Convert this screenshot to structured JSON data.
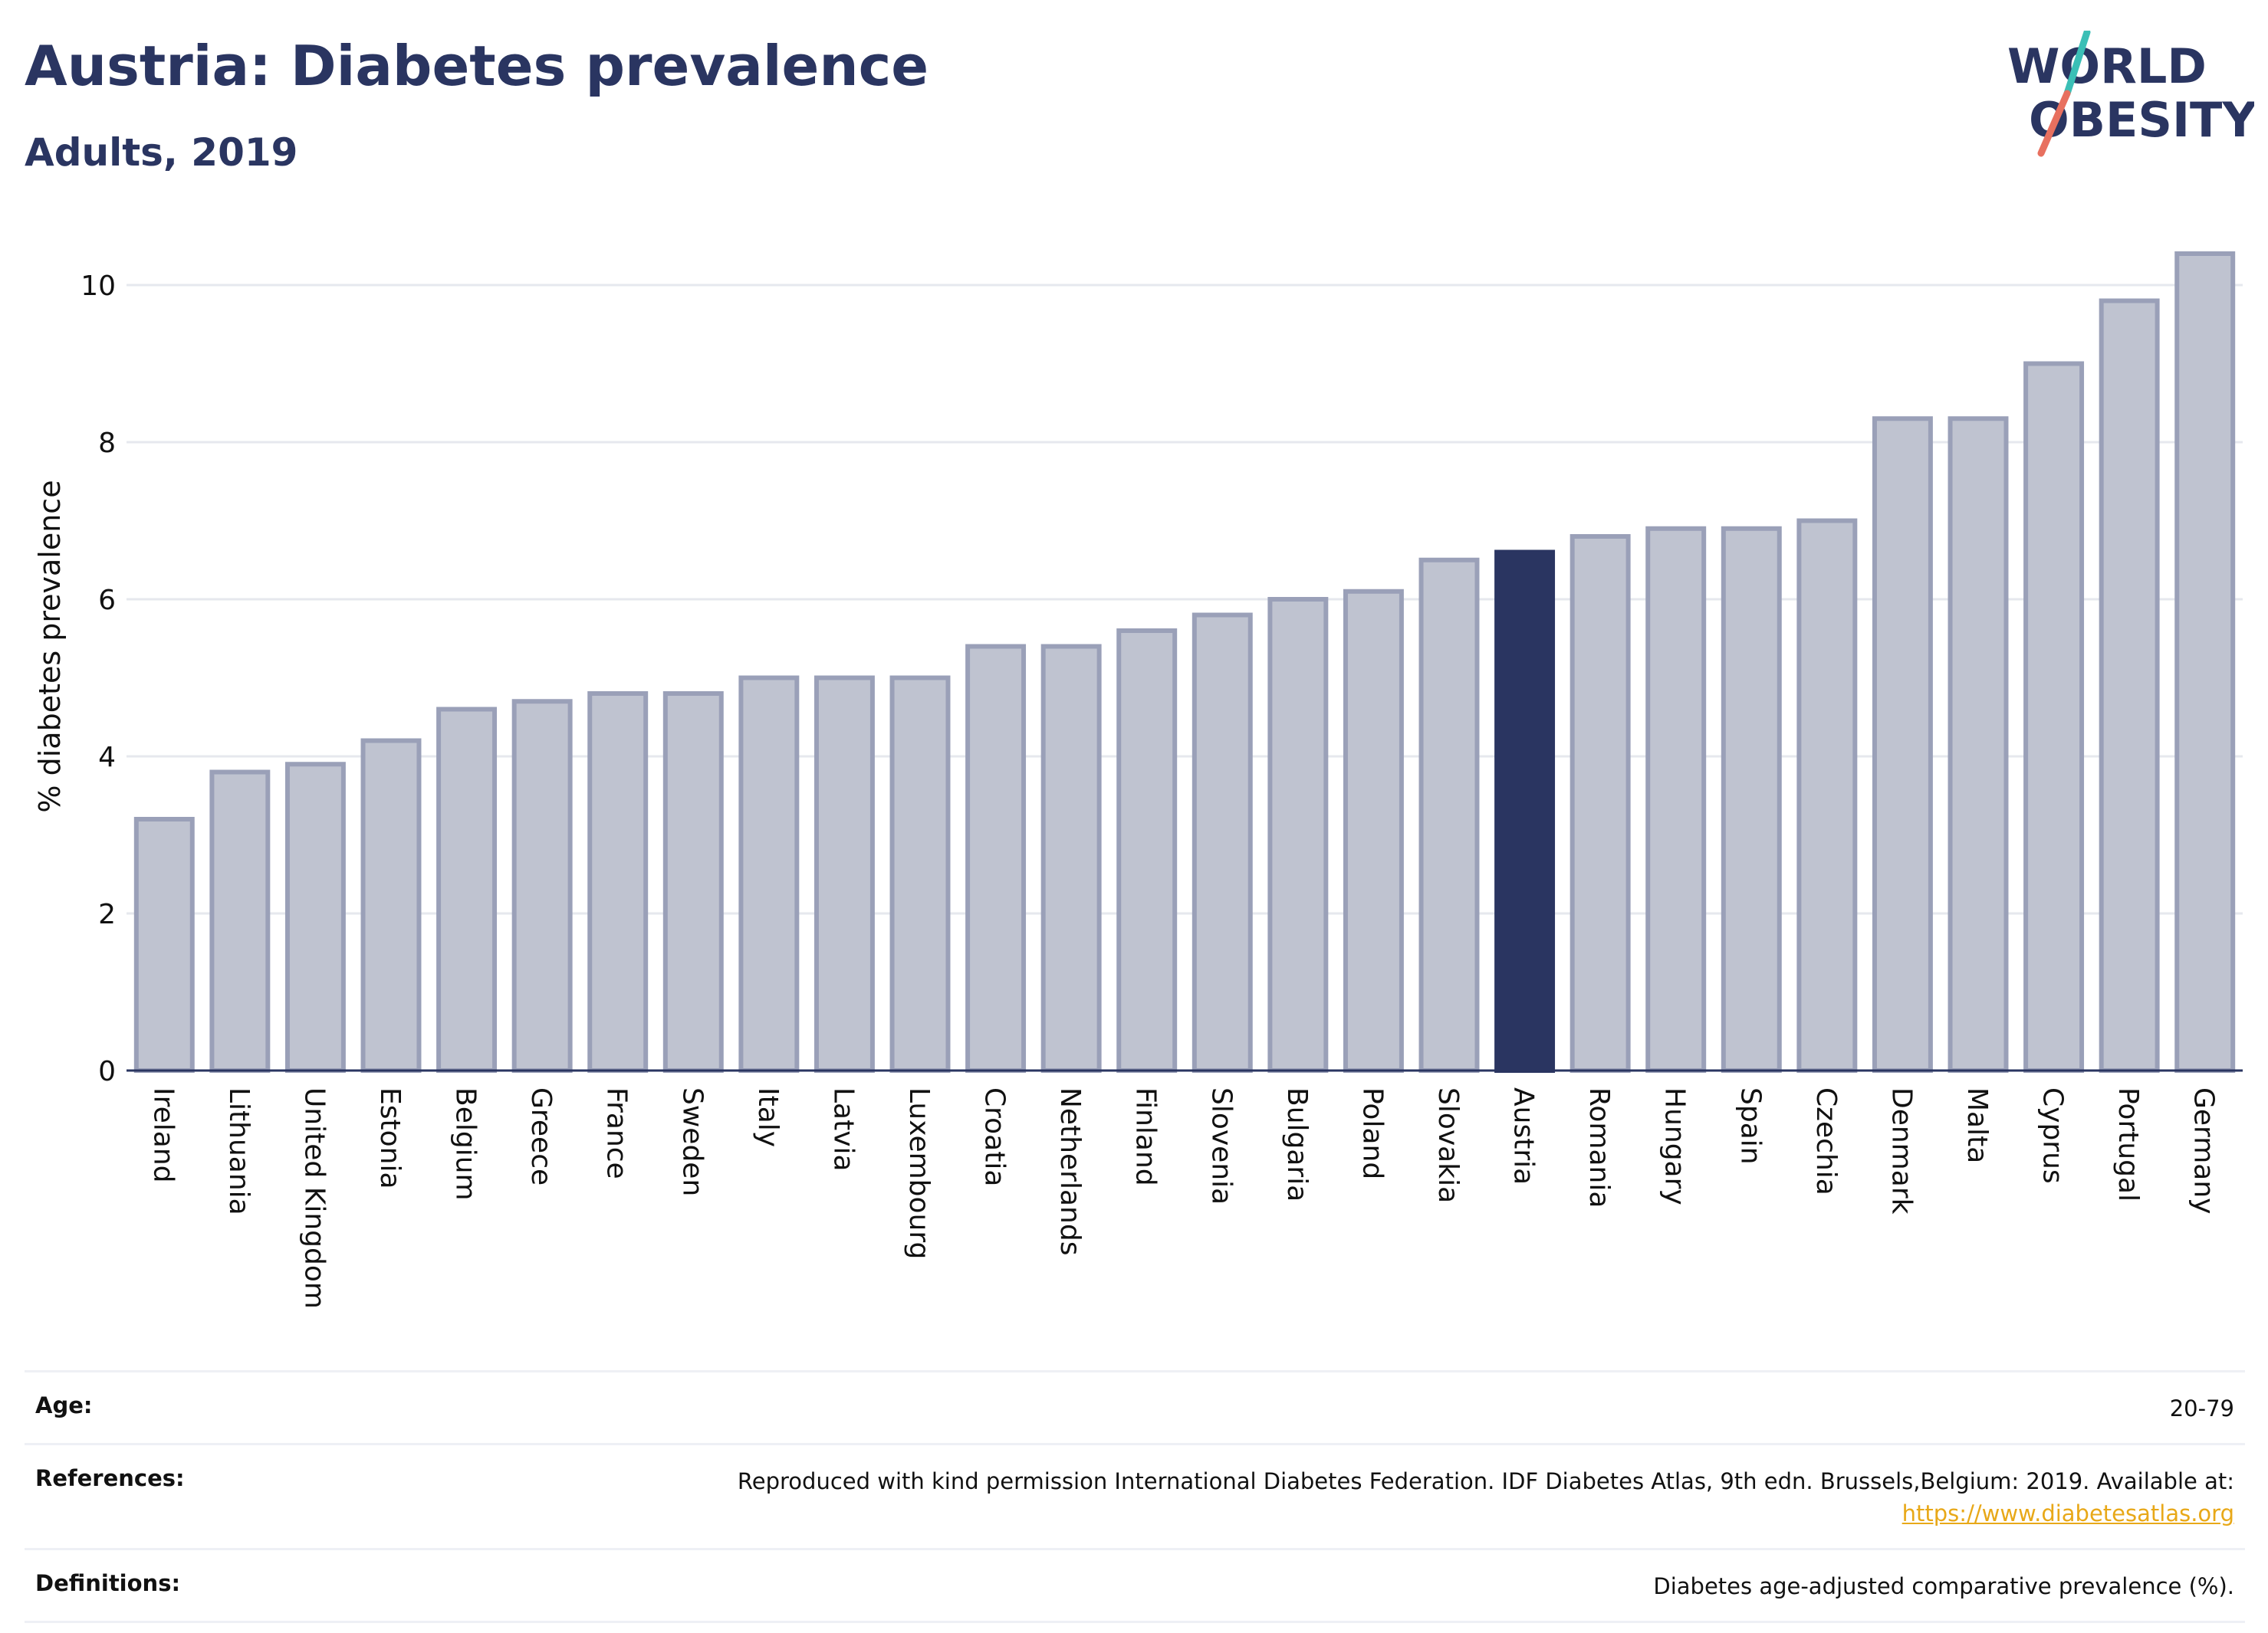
{
  "header": {
    "title": "Austria: Diabetes prevalence",
    "subtitle": "Adults, 2019"
  },
  "logo": {
    "line1": "WORLD",
    "line2": "OBESITY",
    "accent_teal": "#3bbfb6",
    "accent_coral": "#e8705f"
  },
  "colors": {
    "bar": "#bfc3d0",
    "bar_stroke": "#9aa0b8",
    "highlight": "#2a3561",
    "text": "#2a3561"
  },
  "chart_data": {
    "type": "bar",
    "title": "Austria: Diabetes prevalence",
    "subtitle": "Adults, 2019",
    "ylabel": "% diabetes prevalence",
    "xlabel": "",
    "ylim": [
      0,
      10.8
    ],
    "yticks": [
      0,
      2,
      4,
      6,
      8,
      10
    ],
    "grid": true,
    "highlight": "Austria",
    "categories": [
      "Ireland",
      "Lithuania",
      "United Kingdom",
      "Estonia",
      "Belgium",
      "Greece",
      "France",
      "Sweden",
      "Italy",
      "Latvia",
      "Luxembourg",
      "Croatia",
      "Netherlands",
      "Finland",
      "Slovenia",
      "Bulgaria",
      "Poland",
      "Slovakia",
      "Austria",
      "Romania",
      "Hungary",
      "Spain",
      "Czechia",
      "Denmark",
      "Malta",
      "Cyprus",
      "Portugal",
      "Germany"
    ],
    "values": [
      3.2,
      3.8,
      3.9,
      4.2,
      4.6,
      4.7,
      4.8,
      4.8,
      5.0,
      5.0,
      5.0,
      5.4,
      5.4,
      5.6,
      5.8,
      6.0,
      6.1,
      6.5,
      6.6,
      6.8,
      6.9,
      6.9,
      7.0,
      8.3,
      8.3,
      9.0,
      9.8,
      10.4
    ]
  },
  "info": {
    "age_label": "Age:",
    "age_value": "20-79",
    "references_label": "References:",
    "references_value": "Reproduced with kind permission International Diabetes Federation. IDF Diabetes Atlas, 9th edn. Brussels,Belgium: 2019. Available at:",
    "references_link": "https://www.diabetesatlas.org",
    "definitions_label": "Definitions:",
    "definitions_value": "Diabetes age-adjusted comparative prevalence (%)."
  }
}
